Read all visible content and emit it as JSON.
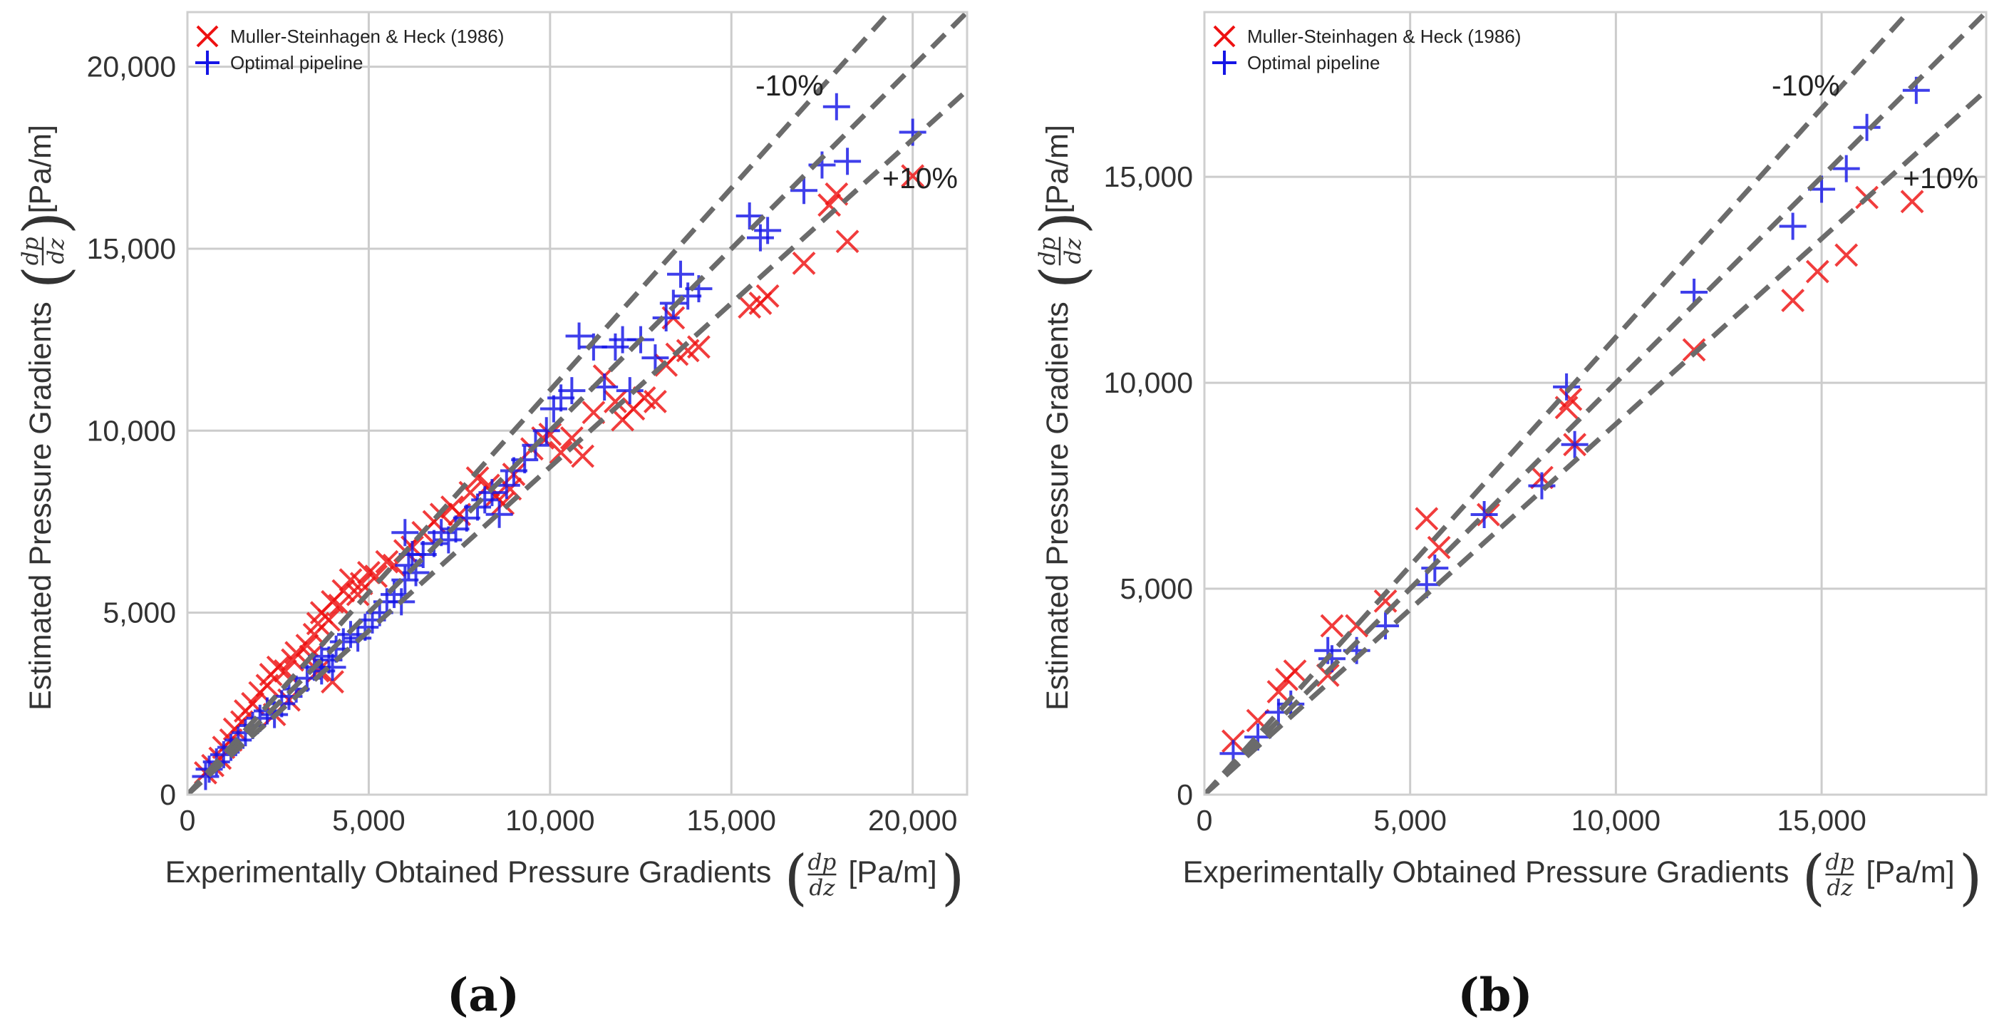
{
  "chart_data": [
    {
      "type": "scatter",
      "panel_label": "(a)",
      "xlabel": "Experimentally Obtained Pressure Gradients",
      "ylabel": "Estimated Pressure Gradients",
      "frac_num": "dp",
      "frac_den": "dz",
      "unit": "[Pa/m]",
      "xlim": [
        0,
        21500
      ],
      "ylim": [
        0,
        21500
      ],
      "xticks": [
        0,
        5000,
        10000,
        15000,
        20000
      ],
      "yticks": [
        0,
        5000,
        10000,
        15000,
        20000
      ],
      "xtick_labels": [
        "0",
        "5,000",
        "10,000",
        "15,000",
        "20,000"
      ],
      "ytick_labels": [
        "0",
        "5,000",
        "10,000",
        "15,000",
        "20,000"
      ],
      "grid": true,
      "legend_position": "top-left",
      "reference_lines": [
        {
          "label": "-10%",
          "slope": 1.111
        },
        {
          "label": "",
          "slope": 1.0
        },
        {
          "label": "+10%",
          "slope": 0.9
        }
      ],
      "series": [
        {
          "name": "Muller-Steinhagen & Heck (1986)",
          "marker": "x",
          "color": "#ee1111",
          "points": [
            [
              500,
              600
            ],
            [
              700,
              800
            ],
            [
              900,
              1000
            ],
            [
              1000,
              1300
            ],
            [
              1200,
              1500
            ],
            [
              1300,
              1800
            ],
            [
              1500,
              2000
            ],
            [
              1600,
              2300
            ],
            [
              1800,
              2500
            ],
            [
              2000,
              2800
            ],
            [
              2200,
              3000
            ],
            [
              2300,
              3300
            ],
            [
              2500,
              3500
            ],
            [
              2700,
              3400
            ],
            [
              2900,
              3700
            ],
            [
              3000,
              3900
            ],
            [
              3300,
              4100
            ],
            [
              3500,
              4400
            ],
            [
              3600,
              4700
            ],
            [
              3700,
              5000
            ],
            [
              3900,
              4800
            ],
            [
              4000,
              5300
            ],
            [
              4200,
              5200
            ],
            [
              4300,
              5600
            ],
            [
              4500,
              5900
            ],
            [
              4700,
              5500
            ],
            [
              4800,
              5800
            ],
            [
              5000,
              6100
            ],
            [
              5200,
              6000
            ],
            [
              5500,
              6400
            ],
            [
              5700,
              6300
            ],
            [
              6000,
              6700
            ],
            [
              6200,
              6800
            ],
            [
              6500,
              7200
            ],
            [
              6800,
              7500
            ],
            [
              7000,
              7700
            ],
            [
              7300,
              7900
            ],
            [
              7500,
              7700
            ],
            [
              7800,
              8300
            ],
            [
              8000,
              8700
            ],
            [
              8300,
              8500
            ],
            [
              8500,
              8200
            ],
            [
              8700,
              8000
            ],
            [
              8900,
              8400
            ],
            [
              9000,
              8800
            ],
            [
              3400,
              3800
            ],
            [
              3600,
              3400
            ],
            [
              4000,
              3100
            ],
            [
              2800,
              2600
            ],
            [
              2400,
              2200
            ],
            [
              9500,
              9500
            ],
            [
              9800,
              9800
            ],
            [
              10000,
              9900
            ],
            [
              10300,
              9400
            ],
            [
              10600,
              9800
            ],
            [
              10900,
              9300
            ],
            [
              11200,
              10500
            ],
            [
              11500,
              11500
            ],
            [
              11800,
              10800
            ],
            [
              12000,
              10300
            ],
            [
              12300,
              10600
            ],
            [
              12600,
              10900
            ],
            [
              12900,
              10800
            ],
            [
              13200,
              11800
            ],
            [
              13500,
              12100
            ],
            [
              13800,
              12200
            ],
            [
              14100,
              12300
            ],
            [
              13400,
              13100
            ],
            [
              15500,
              13400
            ],
            [
              15800,
              13500
            ],
            [
              16000,
              13700
            ],
            [
              17000,
              14600
            ],
            [
              17700,
              16200
            ],
            [
              18200,
              15200
            ],
            [
              17900,
              16500
            ],
            [
              20000,
              17000
            ]
          ]
        },
        {
          "name": "Optimal pipeline",
          "marker": "+",
          "color": "#1515e6",
          "points": [
            [
              500,
              500
            ],
            [
              600,
              700
            ],
            [
              800,
              900
            ],
            [
              1000,
              1100
            ],
            [
              1200,
              1300
            ],
            [
              1400,
              1500
            ],
            [
              1600,
              1700
            ],
            [
              1800,
              1900
            ],
            [
              2000,
              2100
            ],
            [
              2200,
              2300
            ],
            [
              2400,
              2200
            ],
            [
              2600,
              2500
            ],
            [
              2800,
              2700
            ],
            [
              3000,
              2900
            ],
            [
              3300,
              3200
            ],
            [
              3500,
              3500
            ],
            [
              3700,
              3800
            ],
            [
              3900,
              3700
            ],
            [
              4100,
              4000
            ],
            [
              4300,
              4200
            ],
            [
              4500,
              4400
            ],
            [
              4700,
              4300
            ],
            [
              4900,
              4600
            ],
            [
              5100,
              4800
            ],
            [
              5300,
              5000
            ],
            [
              5500,
              5300
            ],
            [
              5700,
              5500
            ],
            [
              6000,
              5900
            ],
            [
              6100,
              6300
            ],
            [
              6300,
              6100
            ],
            [
              6500,
              6600
            ],
            [
              6800,
              6900
            ],
            [
              7000,
              7200
            ],
            [
              7200,
              7000
            ],
            [
              7400,
              7300
            ],
            [
              7700,
              7600
            ],
            [
              8000,
              7900
            ],
            [
              8200,
              8100
            ],
            [
              8400,
              8300
            ],
            [
              8600,
              7700
            ],
            [
              8800,
              8500
            ],
            [
              9000,
              8900
            ],
            [
              9300,
              9200
            ],
            [
              9600,
              9600
            ],
            [
              9900,
              10000
            ],
            [
              10100,
              10600
            ],
            [
              10300,
              10900
            ],
            [
              10600,
              11100
            ],
            [
              10800,
              12600
            ],
            [
              11200,
              12300
            ],
            [
              11500,
              11200
            ],
            [
              11800,
              12300
            ],
            [
              12000,
              12500
            ],
            [
              12200,
              11100
            ],
            [
              12500,
              12500
            ],
            [
              12900,
              12000
            ],
            [
              13200,
              13100
            ],
            [
              13400,
              13500
            ],
            [
              13600,
              14300
            ],
            [
              13800,
              13700
            ],
            [
              14100,
              13900
            ],
            [
              15500,
              15900
            ],
            [
              15800,
              15300
            ],
            [
              16000,
              15500
            ],
            [
              17000,
              16600
            ],
            [
              17500,
              17300
            ],
            [
              18200,
              17400
            ],
            [
              17900,
              18900
            ],
            [
              20000,
              18200
            ],
            [
              6000,
              7200
            ],
            [
              6200,
              6600
            ],
            [
              5900,
              5300
            ],
            [
              4000,
              3500
            ],
            [
              3700,
              3400
            ]
          ]
        }
      ]
    },
    {
      "type": "scatter",
      "panel_label": "(b)",
      "xlabel": "Experimentally Obtained Pressure Gradients",
      "ylabel": "Estimated Pressure Gradients",
      "frac_num": "dp",
      "frac_den": "dz",
      "unit": "[Pa/m]",
      "xlim": [
        0,
        19000
      ],
      "ylim": [
        0,
        19000
      ],
      "xticks": [
        0,
        5000,
        10000,
        15000
      ],
      "yticks": [
        0,
        5000,
        10000,
        15000
      ],
      "xtick_labels": [
        "0",
        "5,000",
        "10,000",
        "15,000"
      ],
      "ytick_labels": [
        "0",
        "5,000",
        "10,000",
        "15,000"
      ],
      "grid": true,
      "legend_position": "top-left",
      "reference_lines": [
        {
          "label": "-10%",
          "slope": 1.111
        },
        {
          "label": "",
          "slope": 1.0
        },
        {
          "label": "+10%",
          "slope": 0.9
        }
      ],
      "series": [
        {
          "name": "Muller-Steinhagen & Heck (1986)",
          "marker": "x",
          "color": "#ee1111",
          "points": [
            [
              700,
              1300
            ],
            [
              1300,
              1800
            ],
            [
              1800,
              2500
            ],
            [
              2000,
              2800
            ],
            [
              2200,
              3000
            ],
            [
              3000,
              2900
            ],
            [
              3100,
              4100
            ],
            [
              3700,
              4100
            ],
            [
              4400,
              4700
            ],
            [
              5400,
              6700
            ],
            [
              5700,
              6000
            ],
            [
              6900,
              6800
            ],
            [
              8200,
              7700
            ],
            [
              8800,
              9400
            ],
            [
              8900,
              9600
            ],
            [
              9000,
              8500
            ],
            [
              11900,
              10800
            ],
            [
              14300,
              12000
            ],
            [
              14900,
              12700
            ],
            [
              15600,
              13100
            ],
            [
              16100,
              14500
            ],
            [
              17200,
              14400
            ]
          ]
        },
        {
          "name": "Optimal pipeline",
          "marker": "+",
          "color": "#1515e6",
          "points": [
            [
              700,
              1000
            ],
            [
              1300,
              1400
            ],
            [
              1800,
              2000
            ],
            [
              2100,
              2200
            ],
            [
              3000,
              3500
            ],
            [
              3100,
              3300
            ],
            [
              3700,
              3500
            ],
            [
              4400,
              4100
            ],
            [
              5400,
              5100
            ],
            [
              5600,
              5500
            ],
            [
              6800,
              6800
            ],
            [
              8200,
              7500
            ],
            [
              8800,
              9900
            ],
            [
              9000,
              8500
            ],
            [
              11900,
              12200
            ],
            [
              14300,
              13800
            ],
            [
              15000,
              14700
            ],
            [
              15600,
              15200
            ],
            [
              16100,
              16200
            ],
            [
              17300,
              17100
            ]
          ]
        }
      ]
    }
  ]
}
